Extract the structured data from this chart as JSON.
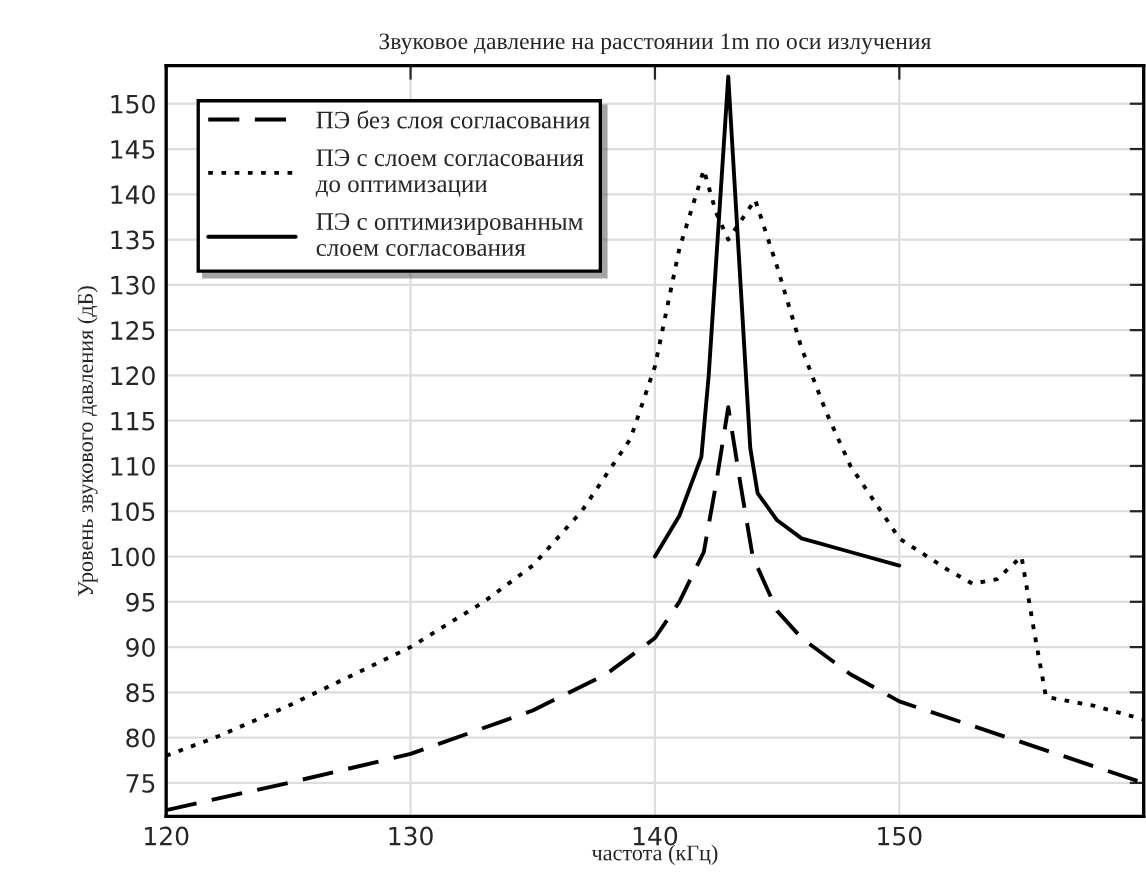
{
  "chart_data": {
    "type": "line",
    "title": "Звуковое давление на расстоянии 1m по оси излучения",
    "xlabel": "частота (кГц)",
    "ylabel": "Уровень звукового давления (дБ)",
    "xlim": [
      120,
      160
    ],
    "xticks": [
      120,
      130,
      140,
      150
    ],
    "ylim": [
      71.3,
      154.2
    ],
    "yticks": [
      75,
      80,
      85,
      90,
      95,
      100,
      105,
      110,
      115,
      120,
      125,
      130,
      135,
      140,
      145,
      150
    ],
    "grid": true,
    "legend": "top left",
    "series": [
      {
        "name": "ПЭ без слоя согласования",
        "color": "#000000",
        "line_style": "dashed",
        "x": [
          120,
          125,
          130,
          135,
          138,
          140,
          141,
          142,
          142.5,
          143,
          143.5,
          144,
          145,
          146,
          148,
          150,
          155,
          160
        ],
        "values": [
          72,
          75,
          78.2,
          83,
          87,
          91,
          95,
          100.5,
          108,
          116.5,
          108,
          100,
          94,
          91,
          87,
          84,
          79.5,
          75
        ]
      },
      {
        "name": "ПЭ с слоем согласования\nдо оптимизации",
        "color": "#000000",
        "line_style": "dotted",
        "x": [
          120,
          122,
          125,
          130,
          133,
          135,
          137,
          139,
          140,
          141,
          142,
          142.5,
          143,
          143.5,
          144.1,
          145,
          146,
          147,
          148,
          150,
          152,
          153,
          154,
          155,
          155.5,
          156,
          158,
          160
        ],
        "values": [
          78,
          80,
          83.5,
          90,
          95,
          99,
          105,
          113,
          121,
          134,
          142.7,
          138,
          135,
          137,
          139.4,
          132,
          123,
          116,
          110,
          102,
          98.5,
          97,
          97.5,
          100,
          92,
          84.5,
          83.5,
          82
        ]
      },
      {
        "name": "ПЭ с оптимизированным\nслоем согласования",
        "color": "#000000",
        "line_style": "solid",
        "x": [
          140,
          141,
          141.9,
          142.2,
          143,
          143.9,
          144.2,
          145,
          146,
          148,
          150
        ],
        "values": [
          100,
          104.5,
          111,
          120,
          153,
          112,
          107,
          104,
          102,
          100.5,
          99
        ]
      }
    ]
  }
}
